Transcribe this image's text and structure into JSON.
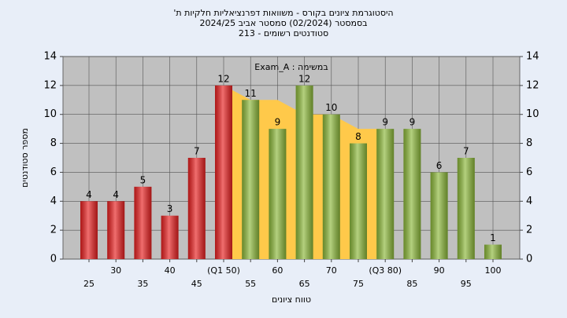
{
  "chart_data": {
    "type": "bar",
    "title": [
      "היסטוגרמת ציונים בקורס - משוואות דפרנציאליות חלקיות ת'",
      "בסמסטר (02/2024) סמסטר אביב 2024/25",
      "סטודנטים רשומים - 213"
    ],
    "annotation": "במשימה : Exam_A",
    "x_label": "טווח ציונים",
    "y_label": "מספר סטודנטים",
    "categories": [
      "25",
      "30",
      "35",
      "40",
      "45",
      "(Q1 50)",
      "55",
      "60",
      "65",
      "70",
      "75",
      "(Q3 80)",
      "85",
      "90",
      "95",
      "100"
    ],
    "values": [
      4,
      4,
      5,
      3,
      7,
      12,
      11,
      9,
      12,
      10,
      8,
      9,
      9,
      6,
      7,
      1
    ],
    "colors": [
      "#e82020",
      "#e82020",
      "#e82020",
      "#e82020",
      "#e82020",
      "#e82020",
      "#8cb83a",
      "#8cb83a",
      "#8cb83a",
      "#8cb83a",
      "#8cb83a",
      "#8cb83a",
      "#8cb83a",
      "#8cb83a",
      "#8cb83a",
      "#8cb83a"
    ],
    "area": {
      "color": "#ffc94a",
      "values": [
        null,
        null,
        null,
        null,
        null,
        12,
        11,
        11,
        10,
        10,
        9,
        9,
        null,
        null,
        null,
        null
      ]
    },
    "ylim": [
      0,
      14
    ],
    "yticks": [
      0,
      2,
      4,
      6,
      8,
      10,
      12,
      14
    ],
    "y2lim": [
      0,
      14
    ],
    "y2ticks": [
      0,
      2,
      4,
      6,
      8,
      10,
      12,
      14
    ],
    "grid": true
  }
}
